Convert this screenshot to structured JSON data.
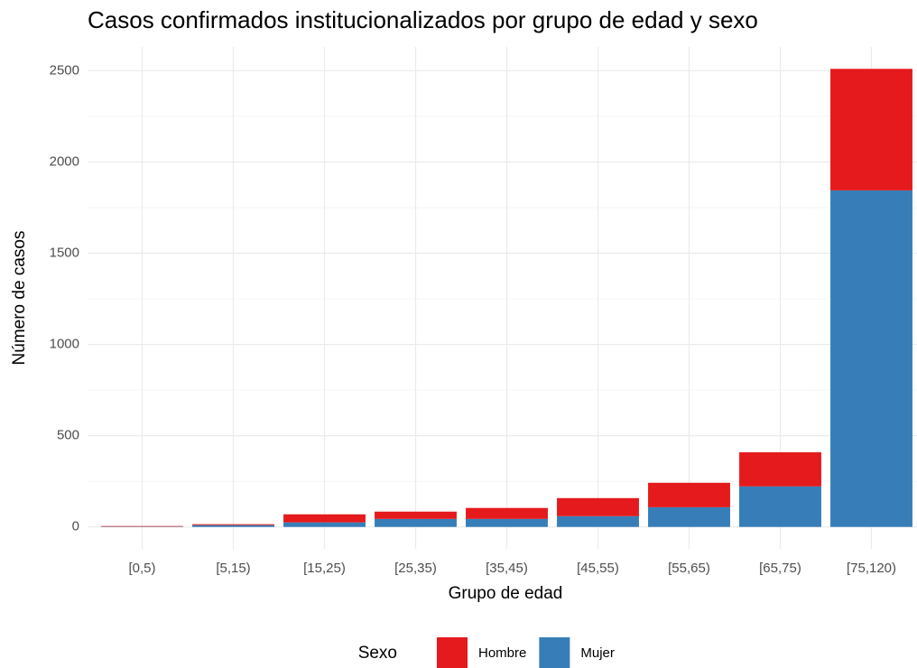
{
  "chart_data": {
    "type": "stacked_bar",
    "title": "Casos confirmados institucionalizados por grupo de edad y sexo",
    "x_label": "Grupo de edad",
    "y_label": "Número de casos",
    "legend_title": "Sexo",
    "legend_position": "bottom",
    "categories": [
      "[0,5)",
      "[5,15)",
      "[15,25)",
      "[25,35)",
      "[35,45)",
      "[45,55)",
      "[55,65)",
      "[65,75)",
      "[75,120)"
    ],
    "series": [
      {
        "name": "Hombre",
        "color": "#e41a1c",
        "values": [
          3,
          5,
          44,
          40,
          60,
          99,
          134,
          187,
          666
        ]
      },
      {
        "name": "Mujer",
        "color": "#377eb8",
        "values": [
          2,
          10,
          25,
          44,
          44,
          59,
          108,
          222,
          1844
        ]
      }
    ],
    "ylim": [
      -120,
      2630
    ],
    "yticks": [
      0,
      500,
      1000,
      1500,
      2000,
      2500
    ],
    "grid": true
  }
}
